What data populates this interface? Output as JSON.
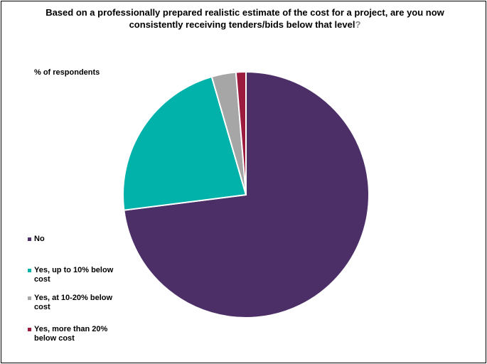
{
  "chart_data": {
    "type": "pie",
    "title": "Based on a professionally prepared realistic estimate of the cost for a project, are you now consistently receiving tenders/bids below that level",
    "title_suffix": "?",
    "ylabel": "% of respondents",
    "legend_position": "left",
    "slices": [
      {
        "label": "No",
        "value": 73.0,
        "color": "#4d2f68"
      },
      {
        "label": "Yes, up to 10% below cost",
        "value": 22.5,
        "color": "#00b2a9"
      },
      {
        "label": "Yes, at 10-20% below cost",
        "value": 3.2,
        "color": "#a6a6a6"
      },
      {
        "label": "Yes, more than 20% below cost",
        "value": 1.3,
        "color": "#9b1b3e"
      }
    ],
    "start_angle_deg": 0,
    "direction": "clockwise"
  }
}
